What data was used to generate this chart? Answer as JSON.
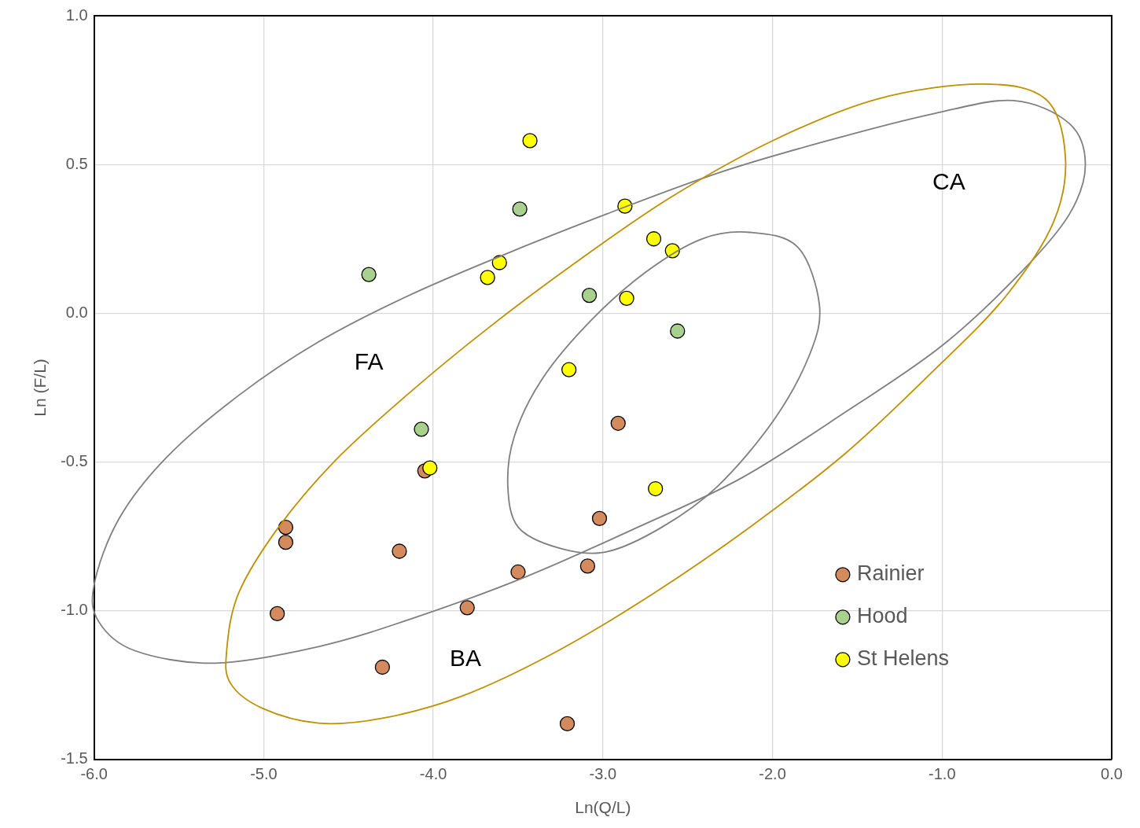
{
  "chart_data": {
    "type": "scatter",
    "xlabel": "Ln(Q/L)",
    "ylabel": "Ln (F/L)",
    "xlim": [
      -6,
      0
    ],
    "ylim": [
      -1.5,
      1
    ],
    "xticks": [
      {
        "value": -6,
        "label": "-6.0"
      },
      {
        "value": -5,
        "label": "-5.0"
      },
      {
        "value": -4,
        "label": "-4.0"
      },
      {
        "value": -3,
        "label": "-3.0"
      },
      {
        "value": -2,
        "label": "-2.0"
      },
      {
        "value": -1,
        "label": "-1.0"
      },
      {
        "value": 0,
        "label": "0.0"
      }
    ],
    "yticks": [
      {
        "value": -1.5,
        "label": "-1.5"
      },
      {
        "value": -1,
        "label": "-1.0"
      },
      {
        "value": -0.5,
        "label": "-0.5"
      },
      {
        "value": 0,
        "label": "0.0"
      },
      {
        "value": 0.5,
        "label": "0.5"
      },
      {
        "value": 1,
        "label": "1.0"
      }
    ],
    "grid": true,
    "legend": "bottom right",
    "marker": "circle",
    "annotations": [
      "FA",
      "CA",
      "BA"
    ],
    "series": [
      {
        "name": "Rainier",
        "color": "#d38b5d",
        "x": [
          -4.87,
          -4.87,
          -4.2,
          -4.92,
          -4.3,
          -4.05,
          -3.8,
          -3.5,
          -3.21,
          -3.09,
          -3.02,
          -2.91
        ],
        "values": [
          -0.72,
          -0.77,
          -0.8,
          -1.01,
          -1.19,
          -0.53,
          -0.99,
          -0.87,
          -1.38,
          -0.85,
          -0.69,
          -0.37
        ]
      },
      {
        "name": "Hood",
        "color": "#a9d18e",
        "x": [
          -4.38,
          -4.07,
          -3.49,
          -3.08,
          -2.56
        ],
        "values": [
          0.13,
          -0.39,
          0.35,
          0.06,
          -0.06
        ]
      },
      {
        "name": "St Helens",
        "color": "#ffff00",
        "x": [
          -3.43,
          -3.61,
          -3.68,
          -4.02,
          -3.2,
          -2.87,
          -2.7,
          -2.59,
          -2.86,
          -2.69
        ],
        "values": [
          0.58,
          0.17,
          0.12,
          -0.52,
          -0.19,
          0.36,
          0.25,
          0.21,
          0.05,
          -0.59
        ]
      }
    ]
  }
}
